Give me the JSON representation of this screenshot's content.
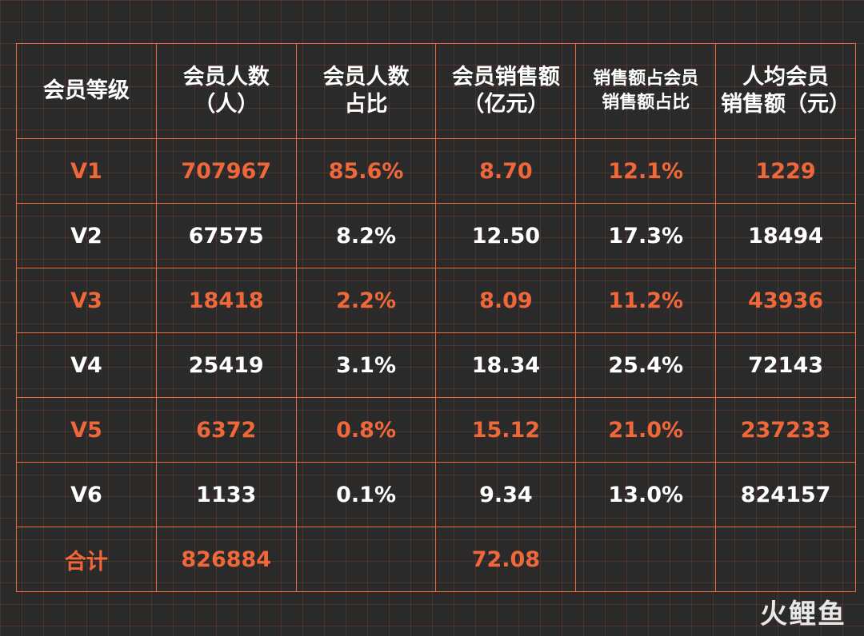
{
  "table": {
    "header": [
      "会员等级",
      "会员人数\n（人）",
      "会员人数\n占比",
      "会员销售额\n（亿元）",
      "销售额占会员\n销售额占比",
      "人均会员\n销售额（元）"
    ],
    "rows": [
      [
        "V1",
        "707967",
        "85.6%",
        "8.70",
        "12.1%",
        "1229"
      ],
      [
        "V2",
        "67575",
        "8.2%",
        "12.50",
        "17.3%",
        "18494"
      ],
      [
        "V3",
        "18418",
        "2.2%",
        "8.09",
        "11.2%",
        "43936"
      ],
      [
        "V4",
        "25419",
        "3.1%",
        "18.34",
        "25.4%",
        "72143"
      ],
      [
        "V5",
        "6372",
        "0.8%",
        "15.12",
        "21.0%",
        "237233"
      ],
      [
        "V6",
        "1133",
        "0.1%",
        "9.34",
        "13.0%",
        "824157"
      ]
    ],
    "total": {
      "label": "合计",
      "members": "826884",
      "sales": "72.08"
    }
  },
  "watermark": "火鲤鱼"
}
